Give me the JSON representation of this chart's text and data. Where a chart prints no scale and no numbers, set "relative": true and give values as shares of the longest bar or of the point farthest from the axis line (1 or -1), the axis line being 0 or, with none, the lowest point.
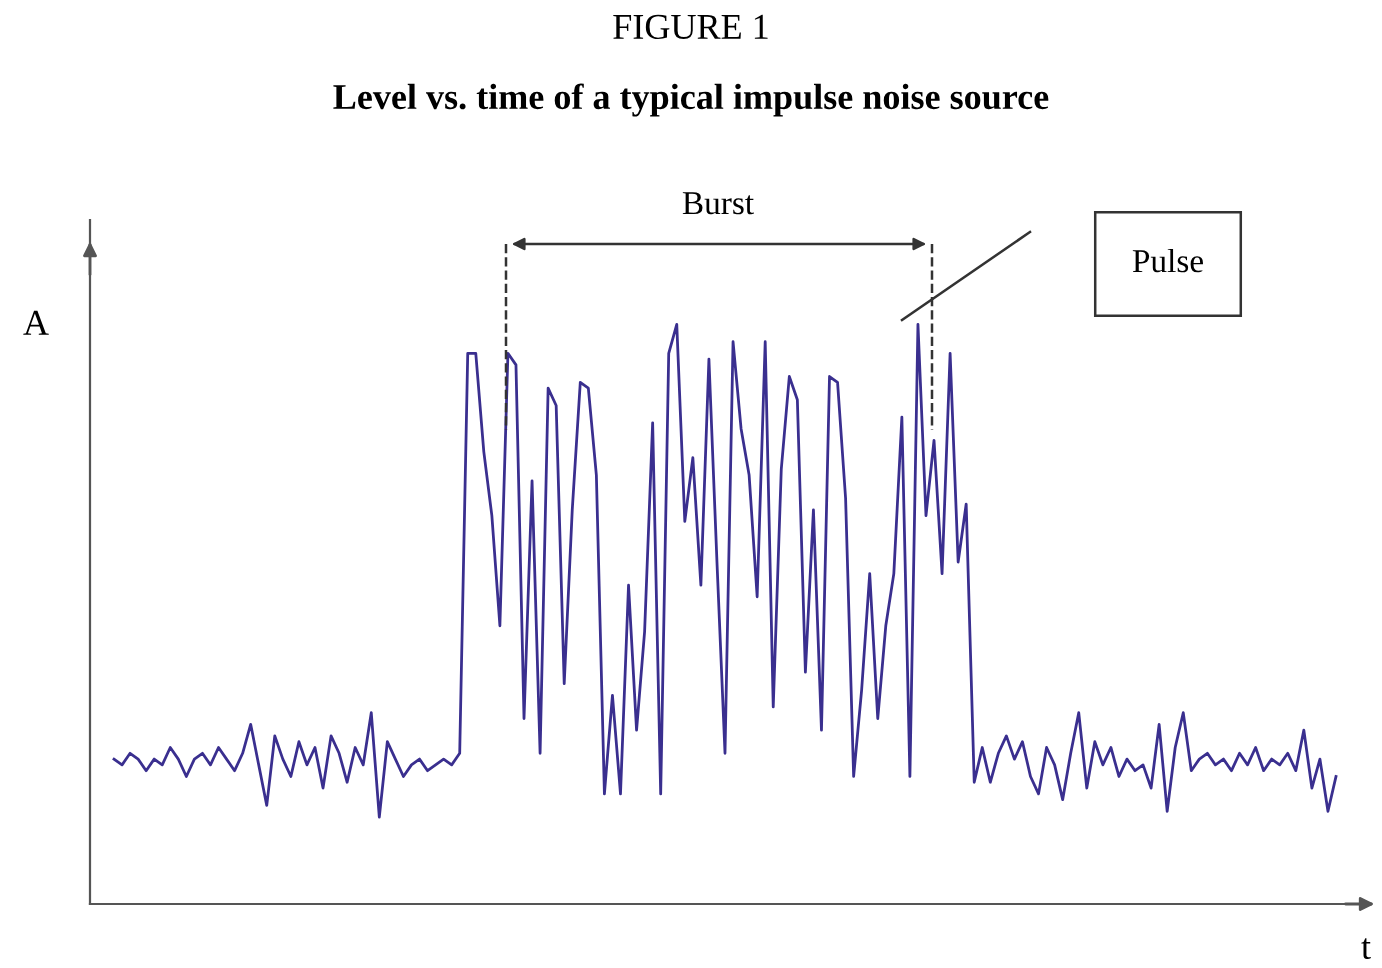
{
  "chart_data": {
    "type": "line",
    "title": "FIGURE 1",
    "subtitle": "Level vs. time of a typical impulse noise source",
    "xlabel": "t",
    "ylabel": "A",
    "relative": true,
    "marker": "none",
    "line_style": "solid",
    "grid": false,
    "annotations": [
      "Burst",
      "Pulse"
    ],
    "categories": [
      null,
      null,
      null,
      null,
      null,
      null,
      null,
      null,
      null,
      null,
      null,
      null,
      null,
      null,
      null,
      null,
      null,
      null,
      null,
      null,
      null,
      null,
      null,
      null,
      null,
      null,
      null,
      null,
      null,
      null,
      null,
      null,
      null,
      null,
      null,
      null,
      null,
      null,
      null,
      null,
      null,
      null,
      null,
      null,
      null,
      null,
      null,
      null,
      null,
      null,
      null,
      null,
      null,
      null,
      null,
      null,
      null,
      null,
      null,
      null,
      null,
      null,
      null,
      null,
      null,
      null,
      null,
      null,
      null,
      null,
      null,
      null,
      null,
      null,
      null,
      null,
      null,
      null,
      null,
      null,
      null,
      null,
      null,
      null,
      null,
      null,
      null,
      null,
      null,
      null,
      null,
      null,
      null,
      null,
      null,
      null,
      null,
      null,
      null,
      null,
      null,
      null,
      null,
      null,
      null,
      null,
      null,
      null,
      null,
      null,
      null,
      null,
      null,
      null,
      null,
      null,
      null,
      null,
      null,
      null,
      null,
      null,
      null,
      null,
      null,
      null,
      null,
      null,
      null,
      null,
      null,
      null,
      null,
      null,
      null,
      null,
      null,
      null,
      null,
      null,
      null,
      null,
      null,
      null,
      null,
      null,
      null,
      null,
      null,
      null,
      null,
      null,
      null
    ],
    "series": [
      {
        "color": "#3a2f8f",
        "values": [
          0.25,
          0.24,
          0.26,
          0.25,
          0.23,
          0.25,
          0.24,
          0.27,
          0.25,
          0.22,
          0.25,
          0.26,
          0.24,
          0.27,
          0.25,
          0.23,
          0.26,
          0.31,
          0.24,
          0.17,
          0.29,
          0.25,
          0.22,
          0.28,
          0.24,
          0.27,
          0.2,
          0.29,
          0.26,
          0.21,
          0.27,
          0.24,
          0.33,
          0.15,
          0.28,
          0.25,
          0.22,
          0.24,
          0.25,
          0.23,
          0.24,
          0.25,
          0.24,
          0.26,
          0.95,
          0.95,
          0.78,
          0.67,
          0.48,
          0.95,
          0.93,
          0.32,
          0.73,
          0.26,
          0.89,
          0.86,
          0.38,
          0.68,
          0.9,
          0.89,
          0.74,
          0.19,
          0.36,
          0.19,
          0.55,
          0.3,
          0.47,
          0.83,
          0.19,
          0.95,
          1.0,
          0.66,
          0.77,
          0.55,
          0.94,
          0.59,
          0.26,
          0.97,
          0.82,
          0.74,
          0.53,
          0.97,
          0.34,
          0.75,
          0.91,
          0.87,
          0.4,
          0.68,
          0.3,
          0.91,
          0.9,
          0.7,
          0.22,
          0.37,
          0.57,
          0.32,
          0.48,
          0.57,
          0.84,
          0.22,
          1.0,
          0.67,
          0.8,
          0.57,
          0.95,
          0.59,
          0.69,
          0.21,
          0.27,
          0.21,
          0.26,
          0.29,
          0.25,
          0.28,
          0.22,
          0.19,
          0.27,
          0.24,
          0.18,
          0.26,
          0.33,
          0.2,
          0.28,
          0.24,
          0.27,
          0.22,
          0.25,
          0.23,
          0.24,
          0.2,
          0.31,
          0.16,
          0.27,
          0.33,
          0.23,
          0.25,
          0.26,
          0.24,
          0.25,
          0.23,
          0.26,
          0.24,
          0.27,
          0.23,
          0.25,
          0.24,
          0.26,
          0.23,
          0.3,
          0.2,
          0.25,
          0.16,
          0.22
        ]
      }
    ]
  }
}
